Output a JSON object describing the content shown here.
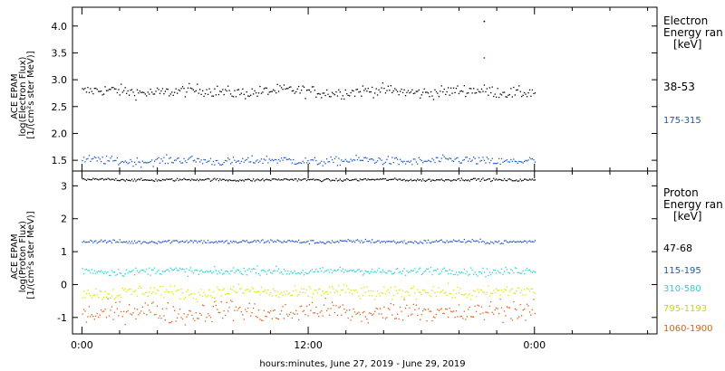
{
  "chart_data": [
    {
      "type": "scatter",
      "panel": "electron",
      "ylabel_lines": [
        "ACE EPAM",
        "log(Electron Flux)",
        "[1/(cm²s ster MeV)]"
      ],
      "ylim": [
        1.3,
        4.35
      ],
      "yticks": [
        1.5,
        2.0,
        2.5,
        3.0,
        3.5,
        4.0
      ],
      "ytick_labels": [
        "1.5",
        "2.0",
        "2.5",
        "3.0",
        "3.5",
        "4.0"
      ],
      "legend_title": [
        "Electron",
        "Energy ran",
        "[keV]"
      ],
      "series": [
        {
          "name": "38-53",
          "color": "#000000",
          "t_range": [
            0,
            24
          ],
          "mean": 2.79,
          "spread": 0.055
        },
        {
          "name": "175-315",
          "color": "#1a55c8",
          "t_range": [
            0,
            24
          ],
          "mean": 1.5,
          "spread": 0.04
        }
      ],
      "outliers": [
        {
          "series": "38-53",
          "t": 21.3,
          "y": 4.1
        },
        {
          "series": "38-53",
          "t": 21.3,
          "y": 3.42
        }
      ]
    },
    {
      "type": "scatter",
      "panel": "proton",
      "ylabel_lines": [
        "ACE EPAM",
        "log(Proton Flux)",
        "[1/(cm²s ster MeV)]"
      ],
      "ylim": [
        -1.5,
        3.45
      ],
      "yticks": [
        -1,
        0,
        1,
        2,
        3
      ],
      "ytick_labels": [
        "-1",
        "0",
        "1",
        "2",
        "3"
      ],
      "legend_title": [
        "Proton",
        "Energy ran",
        "[keV]"
      ],
      "series": [
        {
          "name": "47-68",
          "color": "#000000",
          "t_range": [
            0,
            24
          ],
          "mean": 3.2,
          "spread": 0.02
        },
        {
          "name": "115-195",
          "color": "#1a55c8",
          "t_range": [
            0,
            24
          ],
          "mean": 1.32,
          "spread": 0.03
        },
        {
          "name": "310-580",
          "color": "#22d4d4",
          "t_range": [
            0,
            24
          ],
          "mean": 0.42,
          "spread": 0.06
        },
        {
          "name": "795-1193",
          "color": "#d8e800",
          "t_range": [
            0,
            24
          ],
          "mean": -0.22,
          "spread": 0.1
        },
        {
          "name": "1060-1900",
          "color": "#e85a10",
          "t_range": [
            0,
            24
          ],
          "mean": -0.82,
          "spread": 0.16
        }
      ]
    }
  ],
  "x_axis": {
    "label": "hours:minutes, June 27, 2019 - June 29, 2019",
    "range_hours": [
      -0.5,
      30.5
    ],
    "ticks": [
      0,
      12,
      24
    ],
    "tick_labels": [
      "0:00",
      "12:00",
      "0:00"
    ]
  }
}
